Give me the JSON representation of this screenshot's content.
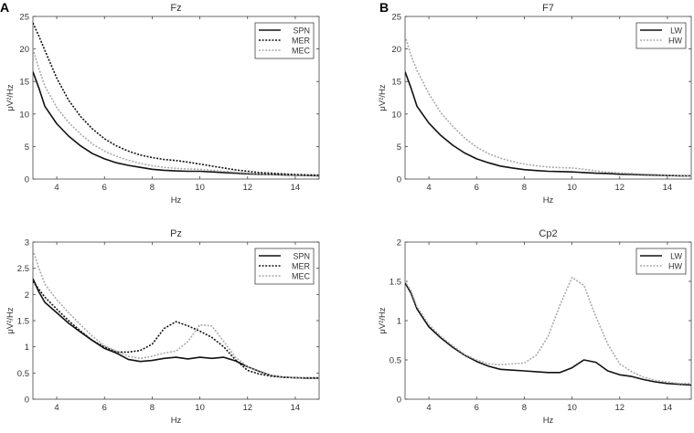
{
  "panel_letters": [
    "A",
    "B"
  ],
  "chart_data": [
    {
      "type": "line",
      "title": "Fz",
      "xlabel": "Hz",
      "ylabel": "μV²/Hz",
      "xlim": [
        3,
        15
      ],
      "ylim": [
        0,
        25
      ],
      "xticks": [
        4,
        6,
        8,
        10,
        12,
        14
      ],
      "yticks": [
        0,
        5,
        10,
        15,
        20,
        25
      ],
      "grid": false,
      "legend_position": "top-right",
      "x": [
        3,
        3.25,
        3.5,
        4,
        4.5,
        5,
        5.5,
        6,
        6.5,
        7,
        7.5,
        8,
        8.5,
        9,
        9.5,
        10,
        10.5,
        11,
        11.5,
        12,
        12.5,
        13,
        13.5,
        14,
        14.5,
        15
      ],
      "series": [
        {
          "name": "SPN",
          "style": "solid",
          "color": "#111111",
          "values": [
            16.5,
            14,
            11.2,
            8.5,
            6.6,
            5.1,
            3.9,
            3.1,
            2.5,
            2.1,
            1.8,
            1.5,
            1.35,
            1.25,
            1.2,
            1.2,
            1.1,
            1.0,
            0.9,
            0.8,
            0.75,
            0.7,
            0.65,
            0.6,
            0.55,
            0.5
          ]
        },
        {
          "name": "MER",
          "style": "dotted",
          "color": "#111111",
          "values": [
            24,
            22,
            19.8,
            15.5,
            12.1,
            9.6,
            7.7,
            6.2,
            5.1,
            4.3,
            3.7,
            3.3,
            3.0,
            2.85,
            2.6,
            2.3,
            2.0,
            1.7,
            1.4,
            1.2,
            1.0,
            0.9,
            0.8,
            0.7,
            0.65,
            0.6
          ]
        },
        {
          "name": "MEC",
          "style": "dotted",
          "color": "#aaaaaa",
          "values": [
            20,
            17,
            14.3,
            11,
            8.7,
            6.9,
            5.4,
            4.3,
            3.5,
            2.9,
            2.4,
            2.05,
            1.8,
            1.65,
            1.55,
            1.5,
            1.35,
            1.2,
            1.05,
            0.9,
            0.8,
            0.75,
            0.7,
            0.65,
            0.6,
            0.55
          ]
        }
      ]
    },
    {
      "type": "line",
      "title": "F7",
      "xlabel": "Hz",
      "ylabel": "μV²/Hz",
      "xlim": [
        3,
        15
      ],
      "ylim": [
        0,
        25
      ],
      "xticks": [
        4,
        6,
        8,
        10,
        12,
        14
      ],
      "yticks": [
        0,
        5,
        10,
        15,
        20,
        25
      ],
      "grid": false,
      "legend_position": "top-right",
      "x": [
        3,
        3.25,
        3.5,
        4,
        4.5,
        5,
        5.5,
        6,
        6.5,
        7,
        7.5,
        8,
        8.5,
        9,
        9.5,
        10,
        10.5,
        11,
        11.5,
        12,
        12.5,
        13,
        13.5,
        14,
        14.5,
        15
      ],
      "series": [
        {
          "name": "LW",
          "style": "solid",
          "color": "#111111",
          "values": [
            16.5,
            14,
            11.2,
            8.6,
            6.7,
            5.2,
            4.0,
            3.1,
            2.5,
            2.0,
            1.7,
            1.45,
            1.3,
            1.2,
            1.15,
            1.1,
            1.0,
            0.9,
            0.85,
            0.75,
            0.7,
            0.65,
            0.6,
            0.55,
            0.5,
            0.5
          ]
        },
        {
          "name": "HW",
          "style": "dotted",
          "color": "#aaaaaa",
          "values": [
            22,
            19,
            16.7,
            13.1,
            10.2,
            8.1,
            6.3,
            4.9,
            3.9,
            3.2,
            2.7,
            2.3,
            2.05,
            1.85,
            1.75,
            1.7,
            1.5,
            1.25,
            1.05,
            0.95,
            0.85,
            0.75,
            0.7,
            0.6,
            0.55,
            0.5
          ]
        }
      ]
    },
    {
      "type": "line",
      "title": "Pz",
      "xlabel": "Hz",
      "ylabel": "μV²/Hz",
      "xlim": [
        3,
        15
      ],
      "ylim": [
        0,
        3
      ],
      "xticks": [
        4,
        6,
        8,
        10,
        12,
        14
      ],
      "yticks": [
        0,
        0.5,
        1,
        1.5,
        2,
        2.5,
        3
      ],
      "grid": false,
      "legend_position": "top-right",
      "x": [
        3,
        3.25,
        3.5,
        4,
        4.5,
        5,
        5.5,
        6,
        6.5,
        7,
        7.5,
        8,
        8.5,
        9,
        9.5,
        10,
        10.5,
        11,
        11.5,
        12,
        12.5,
        13,
        13.5,
        14,
        14.5,
        15
      ],
      "series": [
        {
          "name": "SPN",
          "style": "solid",
          "color": "#111111",
          "values": [
            2.3,
            2.05,
            1.85,
            1.65,
            1.45,
            1.28,
            1.12,
            0.97,
            0.88,
            0.76,
            0.72,
            0.74,
            0.78,
            0.8,
            0.77,
            0.8,
            0.78,
            0.8,
            0.73,
            0.62,
            0.53,
            0.45,
            0.42,
            0.41,
            0.4,
            0.4
          ]
        },
        {
          "name": "MER",
          "style": "dotted",
          "color": "#111111",
          "values": [
            2.25,
            2.1,
            1.95,
            1.72,
            1.5,
            1.3,
            1.12,
            1.0,
            0.9,
            0.9,
            0.93,
            1.05,
            1.35,
            1.48,
            1.4,
            1.3,
            1.18,
            1.0,
            0.75,
            0.55,
            0.48,
            0.44,
            0.42,
            0.41,
            0.41,
            0.41
          ]
        },
        {
          "name": "MEC",
          "style": "dotted",
          "color": "#aaaaaa",
          "values": [
            2.85,
            2.5,
            2.2,
            1.9,
            1.65,
            1.42,
            1.2,
            1.02,
            0.92,
            0.82,
            0.78,
            0.82,
            0.88,
            0.92,
            1.1,
            1.42,
            1.4,
            1.1,
            0.8,
            0.62,
            0.52,
            0.45,
            0.42,
            0.41,
            0.4,
            0.4
          ]
        }
      ]
    },
    {
      "type": "line",
      "title": "Cp2",
      "xlabel": "Hz",
      "ylabel": "μV²/Hz",
      "xlim": [
        3,
        15
      ],
      "ylim": [
        0,
        2
      ],
      "xticks": [
        4,
        6,
        8,
        10,
        12,
        14
      ],
      "yticks": [
        0,
        0.5,
        1,
        1.5,
        2
      ],
      "grid": false,
      "legend_position": "top-right",
      "x": [
        3,
        3.25,
        3.5,
        4,
        4.5,
        5,
        5.5,
        6,
        6.5,
        7,
        7.5,
        8,
        8.5,
        9,
        9.5,
        10,
        10.5,
        11,
        11.5,
        12,
        12.5,
        13,
        13.5,
        14,
        14.5,
        15
      ],
      "series": [
        {
          "name": "LW",
          "style": "solid",
          "color": "#111111",
          "values": [
            1.48,
            1.35,
            1.15,
            0.92,
            0.78,
            0.66,
            0.56,
            0.48,
            0.42,
            0.38,
            0.37,
            0.36,
            0.35,
            0.34,
            0.34,
            0.4,
            0.5,
            0.47,
            0.36,
            0.31,
            0.29,
            0.25,
            0.22,
            0.2,
            0.19,
            0.18
          ]
        },
        {
          "name": "HW",
          "style": "dotted",
          "color": "#aaaaaa",
          "values": [
            1.5,
            1.38,
            1.18,
            0.95,
            0.8,
            0.68,
            0.57,
            0.5,
            0.45,
            0.44,
            0.45,
            0.46,
            0.56,
            0.8,
            1.2,
            1.55,
            1.45,
            1.05,
            0.7,
            0.45,
            0.35,
            0.28,
            0.24,
            0.22,
            0.2,
            0.2
          ]
        }
      ]
    }
  ]
}
